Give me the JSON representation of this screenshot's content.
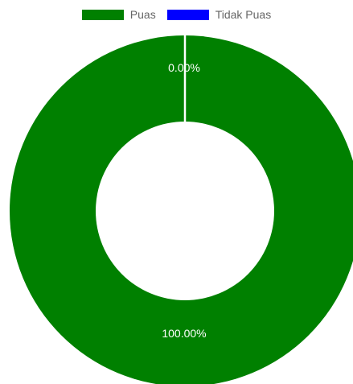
{
  "chart_data": {
    "type": "doughnut",
    "categories": [
      "Puas",
      "Tidak Puas"
    ],
    "values": [
      100,
      0
    ],
    "data_labels": [
      "100.00%",
      "0.00%"
    ],
    "colors": [
      "#008000",
      "#0000ff"
    ],
    "legend_position": "top"
  }
}
